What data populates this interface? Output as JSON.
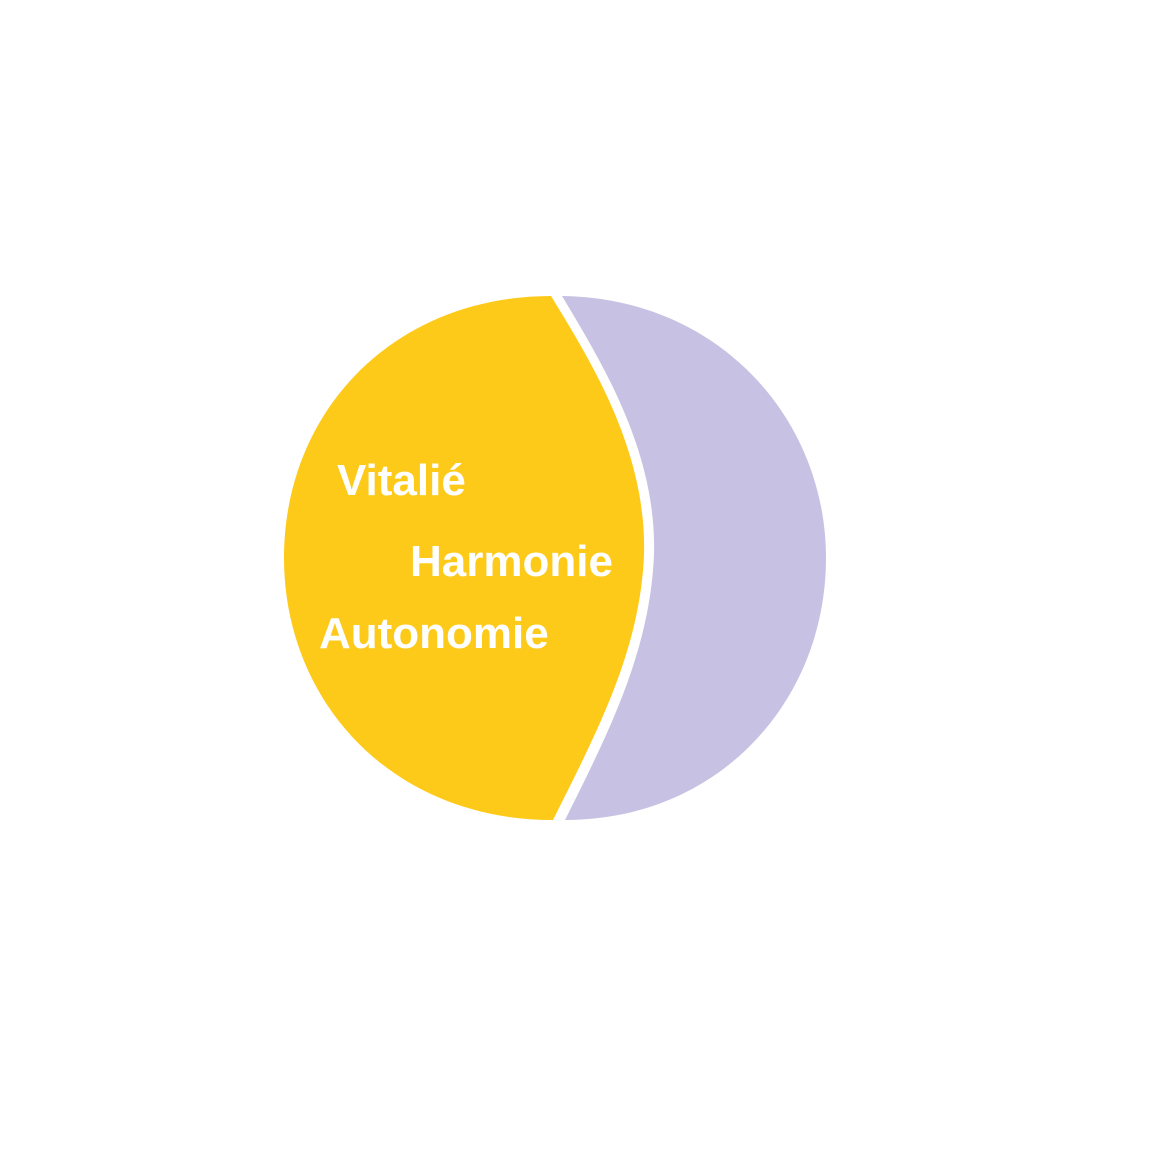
{
  "colors": {
    "background": "#ffffff",
    "left_half": "#fdca1a",
    "right_half": "#c7c1e3",
    "divider": "#ffffff",
    "text": "#ffffff"
  },
  "labels": {
    "word1": "Vitalié",
    "word2": "Harmonie",
    "word3": "Autonomie"
  }
}
